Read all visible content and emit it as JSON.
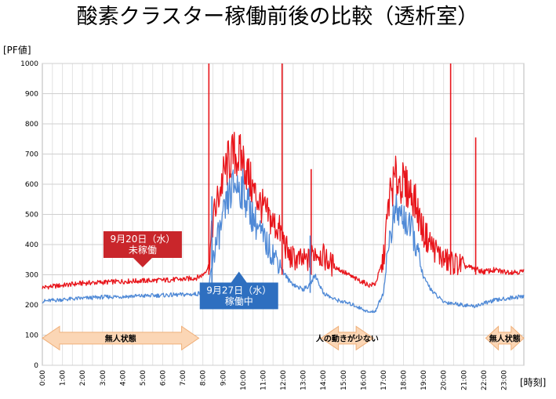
{
  "chart_data": {
    "type": "line",
    "title": "酸素クラスター稼働前後の比較（透析室）",
    "ylabel": "[PF値]",
    "xlabel": "[時刻]",
    "ylim": [
      0,
      1000
    ],
    "yticks": [
      0,
      100,
      200,
      300,
      400,
      500,
      600,
      700,
      800,
      900,
      1000
    ],
    "xlim": [
      0,
      24
    ],
    "xticks": [
      "0:00",
      "1:00",
      "2:00",
      "3:00",
      "4:00",
      "5:00",
      "6:00",
      "7:00",
      "8:00",
      "9:00",
      "10:00",
      "11:00",
      "12:00",
      "13:00",
      "14:00",
      "15:00",
      "16:00",
      "17:00",
      "18:00",
      "19:00",
      "20:00",
      "21:00",
      "22:00",
      "23:00"
    ],
    "grid": true,
    "series": [
      {
        "color": "#e8151b",
        "x": [
          0,
          1,
          2,
          3,
          4,
          5,
          6,
          7,
          7.7,
          8,
          8.3,
          8.5,
          9,
          9.3,
          9.6,
          10,
          10.5,
          11,
          11.5,
          11.8,
          12,
          12.3,
          12.7,
          13,
          13.3,
          13.6,
          14,
          14.5,
          15,
          15.5,
          16,
          16.3,
          16.6,
          17,
          17.3,
          17.6,
          18,
          18.5,
          19,
          19.5,
          20,
          20.5,
          21,
          21.5,
          22,
          22.5,
          23,
          23.5,
          24
        ],
        "values": [
          258,
          265,
          272,
          275,
          278,
          280,
          282,
          285,
          290,
          300,
          330,
          480,
          620,
          680,
          700,
          680,
          580,
          520,
          470,
          450,
          420,
          360,
          350,
          345,
          350,
          380,
          360,
          330,
          310,
          290,
          275,
          265,
          270,
          350,
          560,
          620,
          600,
          560,
          440,
          390,
          350,
          340,
          330,
          320,
          310,
          315,
          310,
          310,
          310
        ]
      },
      {
        "color": "#4f89d6",
        "x": [
          0,
          1,
          2,
          3,
          4,
          5,
          6,
          7,
          7.7,
          8,
          8.3,
          8.5,
          9,
          9.3,
          9.6,
          10,
          10.5,
          11,
          11.5,
          11.8,
          12,
          12.3,
          12.7,
          13,
          13.3,
          13.6,
          14,
          14.5,
          15,
          15.5,
          16,
          16.3,
          16.6,
          17,
          17.3,
          17.6,
          18,
          18.5,
          19,
          19.5,
          20,
          20.5,
          21,
          21.5,
          22,
          22.5,
          23,
          23.5,
          24
        ],
        "values": [
          212,
          218,
          222,
          226,
          228,
          230,
          232,
          234,
          236,
          245,
          260,
          360,
          480,
          560,
          600,
          580,
          490,
          420,
          370,
          340,
          310,
          280,
          260,
          252,
          262,
          300,
          240,
          220,
          210,
          200,
          185,
          175,
          180,
          240,
          420,
          510,
          490,
          430,
          290,
          240,
          210,
          205,
          200,
          195,
          205,
          215,
          220,
          225,
          228
        ]
      }
    ],
    "spikes": [
      {
        "series": 0,
        "x": 8.3,
        "y": 1000
      },
      {
        "series": 0,
        "x": 11.95,
        "y": 1000
      },
      {
        "series": 0,
        "x": 20.35,
        "y": 1000
      },
      {
        "series": 0,
        "x": 21.6,
        "y": 755
      },
      {
        "series": 0,
        "x": 13.4,
        "y": 650
      },
      {
        "series": 1,
        "x": 8.45,
        "y": 560
      },
      {
        "series": 1,
        "x": 13.35,
        "y": 430
      }
    ],
    "callouts": [
      {
        "label": "9月20日（水）\n未稼働",
        "color": "#c9262b",
        "x": 5.0,
        "y": 400,
        "arrow": "down"
      },
      {
        "label": "9月27日（水）\n稼働中",
        "color": "#2e6fc0",
        "x": 9.8,
        "y": 230,
        "arrow": "up"
      }
    ],
    "annotations": [
      {
        "label": "無人状態",
        "x0": 0,
        "x1": 7.8,
        "y": 90
      },
      {
        "label": "人の動きが少ない",
        "x0": 13.9,
        "x1": 16.5,
        "y": 90
      },
      {
        "label": "無人状態",
        "x0": 22.1,
        "x1": 24,
        "y": 90
      }
    ]
  }
}
